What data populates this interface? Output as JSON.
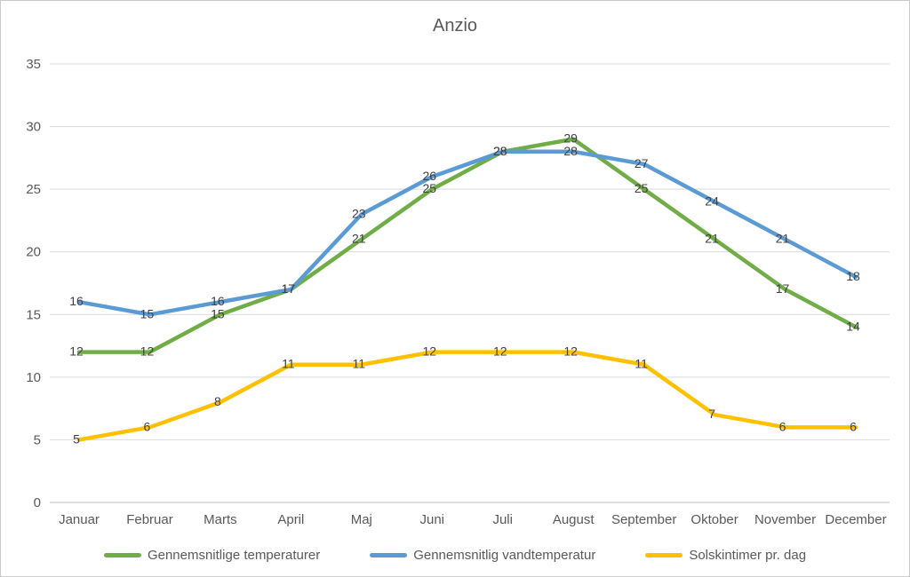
{
  "chart_data": {
    "type": "line",
    "title": "Anzio",
    "categories": [
      "Januar",
      "Februar",
      "Marts",
      "April",
      "Maj",
      "Juni",
      "Juli",
      "August",
      "September",
      "Oktober",
      "November",
      "December"
    ],
    "series": [
      {
        "name": "Gennemsnitlige temperaturer",
        "color": "#70AD47",
        "values": [
          12,
          12,
          15,
          17,
          21,
          25,
          28,
          29,
          25,
          21,
          17,
          14
        ]
      },
      {
        "name": "Gennemsnitlig vandtemperatur",
        "color": "#5B9BD5",
        "values": [
          16,
          15,
          16,
          17,
          23,
          26,
          28,
          28,
          27,
          24,
          21,
          18
        ]
      },
      {
        "name": "Solskintimer pr. dag",
        "color": "#FFC000",
        "values": [
          5,
          6,
          8,
          11,
          11,
          12,
          12,
          12,
          11,
          7,
          6,
          6
        ]
      }
    ],
    "ylim": [
      0,
      35
    ],
    "y_ticks": [
      0,
      5,
      10,
      15,
      20,
      25,
      30,
      35
    ],
    "grid": true,
    "data_labels": true,
    "legend_position": "bottom",
    "colors": {
      "gridline": "#D9D9D9",
      "axis_line": "#BFBFBF",
      "tick_text": "#595959",
      "data_label_text": "#404040",
      "title_text": "#595959"
    }
  }
}
